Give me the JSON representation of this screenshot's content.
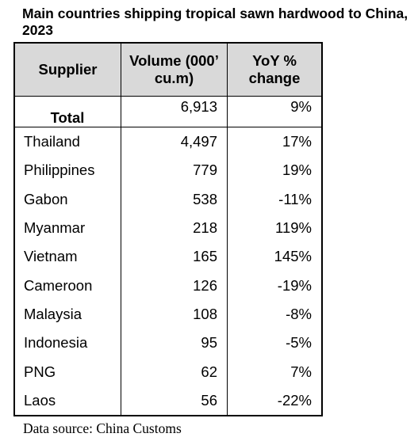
{
  "header": {
    "title": "Main countries shipping tropical sawn hardwood to China, 2023"
  },
  "table": {
    "columns": [
      "Supplier",
      "Volume (000’ cu.m)",
      "YoY % change"
    ],
    "total": [
      "Total",
      "6,913",
      "9%"
    ],
    "rows": [
      [
        "Thailand",
        "4,497",
        "17%"
      ],
      [
        "Philippines",
        "779",
        "19%"
      ],
      [
        "Gabon",
        "538",
        "-11%"
      ],
      [
        "Myanmar",
        "218",
        "119%"
      ],
      [
        "Vietnam",
        "165",
        "145%"
      ],
      [
        "Cameroon",
        "126",
        "-19%"
      ],
      [
        "Malaysia",
        "108",
        "-8%"
      ],
      [
        "Indonesia",
        "95",
        "-5%"
      ],
      [
        "PNG",
        "62",
        "7%"
      ],
      [
        "Laos",
        "56",
        "-22%"
      ]
    ]
  },
  "footer": {
    "source": "Data source: China Customs"
  }
}
